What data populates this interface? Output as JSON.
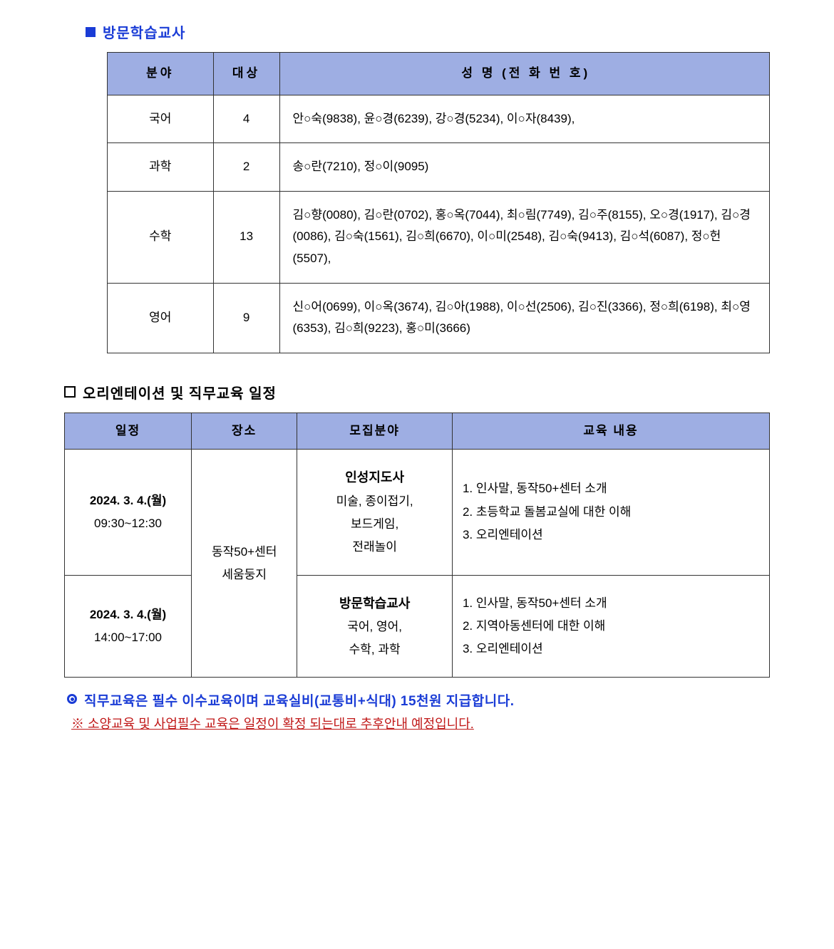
{
  "colors": {
    "accent_blue": "#1a3cd6",
    "header_bg": "#9eaee3",
    "border": "#333333",
    "text": "#000000",
    "footnote_red": "#c01818",
    "background": "#ffffff"
  },
  "section1": {
    "title": "방문학습교사",
    "table": {
      "headers": {
        "field": "분야",
        "target": "대상",
        "names": "성 명 (전 화 번 호)"
      },
      "rows": [
        {
          "field": "국어",
          "target": "4",
          "names": "안○숙(9838), 윤○경(6239), 강○경(5234), 이○자(8439),"
        },
        {
          "field": "과학",
          "target": "2",
          "names": "송○란(7210), 정○이(9095)"
        },
        {
          "field": "수학",
          "target": "13",
          "names": "김○향(0080), 김○란(0702), 홍○옥(7044), 최○림(7749), 김○주(8155), 오○경(1917), 김○경(0086), 김○숙(1561), 김○희(6670), 이○미(2548), 김○숙(9413), 김○석(6087), 정○헌(5507),"
        },
        {
          "field": "영어",
          "target": "9",
          "names": "신○어(0699), 이○옥(3674), 김○아(1988), 이○선(2506), 김○진(3366), 정○희(6198), 최○영(6353), 김○희(9223), 홍○미(3666)"
        }
      ]
    }
  },
  "section2": {
    "title": "오리엔테이션 및 직무교육 일정",
    "table": {
      "headers": {
        "schedule": "일정",
        "place": "장소",
        "field": "모집분야",
        "content": "교육 내용"
      },
      "place_merged": "동작50+센터\n세움둥지",
      "rows": [
        {
          "date": "2024. 3. 4.(월)",
          "time": "09:30~12:30",
          "field_title": "인성지도사",
          "field_detail": "미술, 종이접기,\n보드게임,\n전래놀이",
          "content": "1. 인사말, 동작50+센터 소개\n2. 초등학교 돌봄교실에 대한 이해\n3. 오리엔테이션"
        },
        {
          "date": "2024. 3. 4.(월)",
          "time": "14:00~17:00",
          "field_title": "방문학습교사",
          "field_detail": "국어, 영어,\n수학, 과학",
          "content": "1. 인사말, 동작50+센터 소개\n2. 지역아동센터에 대한 이해\n3. 오리엔테이션"
        }
      ]
    }
  },
  "footnotes": {
    "line1": "직무교육은 필수 이수교육이며 교육실비(교통비+식대) 15천원 지급합니다.",
    "line2": "※ 소양교육 및 사업필수 교육은 일정이 확정 되는대로 추후안내 예정입니다."
  }
}
